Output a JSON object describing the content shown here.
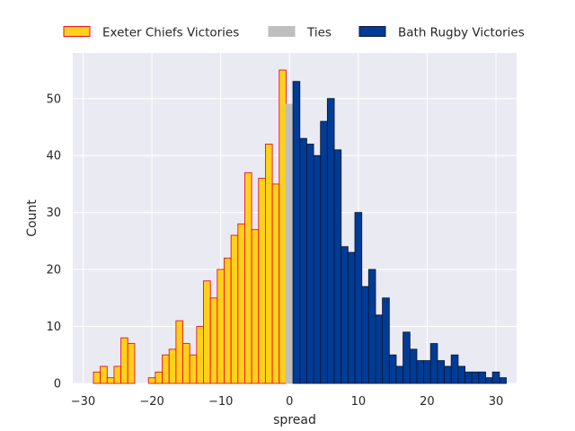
{
  "chart_data": {
    "type": "bar",
    "subtype": "histogram",
    "xlabel": "spread",
    "ylabel": "Count",
    "xlim": [
      -31.5,
      33
    ],
    "ylim": [
      0,
      58
    ],
    "x_ticks": [
      -30,
      -20,
      -10,
      0,
      10,
      20,
      30
    ],
    "x_tick_labels": [
      "−30",
      "−20",
      "−10",
      "0",
      "10",
      "20",
      "30"
    ],
    "y_ticks": [
      0,
      10,
      20,
      30,
      40,
      50
    ],
    "y_tick_labels": [
      "0",
      "10",
      "20",
      "30",
      "40",
      "50"
    ],
    "bin_width": 1,
    "grid": true,
    "legend_placement": "top",
    "series": [
      {
        "name": "Exeter Chiefs Victories",
        "color": "#FFD11A",
        "edge_color": "#E8102A",
        "bins": [
          {
            "x": -28,
            "count": 2
          },
          {
            "x": -27,
            "count": 3
          },
          {
            "x": -26,
            "count": 1
          },
          {
            "x": -25,
            "count": 3
          },
          {
            "x": -24,
            "count": 8
          },
          {
            "x": -23,
            "count": 7
          },
          {
            "x": -20,
            "count": 1
          },
          {
            "x": -19,
            "count": 2
          },
          {
            "x": -18,
            "count": 5
          },
          {
            "x": -17,
            "count": 6
          },
          {
            "x": -16,
            "count": 11
          },
          {
            "x": -15,
            "count": 7
          },
          {
            "x": -14,
            "count": 5
          },
          {
            "x": -13,
            "count": 10
          },
          {
            "x": -12,
            "count": 18
          },
          {
            "x": -11,
            "count": 15
          },
          {
            "x": -10,
            "count": 20
          },
          {
            "x": -9,
            "count": 22
          },
          {
            "x": -8,
            "count": 26
          },
          {
            "x": -7,
            "count": 28
          },
          {
            "x": -6,
            "count": 37
          },
          {
            "x": -5,
            "count": 27
          },
          {
            "x": -4,
            "count": 36
          },
          {
            "x": -3,
            "count": 42
          },
          {
            "x": -2,
            "count": 35
          },
          {
            "x": -1,
            "count": 55
          }
        ]
      },
      {
        "name": "Ties",
        "color": "#BFBFBF",
        "edge_color": "#BFBFBF",
        "bins": [
          {
            "x": 0,
            "count": 49
          }
        ]
      },
      {
        "name": "Bath Rugby Victories",
        "color": "#003B95",
        "edge_color": "#0A1A3A",
        "bins": [
          {
            "x": 1,
            "count": 53
          },
          {
            "x": 2,
            "count": 43
          },
          {
            "x": 3,
            "count": 42
          },
          {
            "x": 4,
            "count": 40
          },
          {
            "x": 5,
            "count": 46
          },
          {
            "x": 6,
            "count": 50
          },
          {
            "x": 7,
            "count": 41
          },
          {
            "x": 8,
            "count": 24
          },
          {
            "x": 9,
            "count": 23
          },
          {
            "x": 10,
            "count": 30
          },
          {
            "x": 11,
            "count": 17
          },
          {
            "x": 12,
            "count": 20
          },
          {
            "x": 13,
            "count": 12
          },
          {
            "x": 14,
            "count": 15
          },
          {
            "x": 15,
            "count": 5
          },
          {
            "x": 16,
            "count": 3
          },
          {
            "x": 17,
            "count": 9
          },
          {
            "x": 18,
            "count": 6
          },
          {
            "x": 19,
            "count": 4
          },
          {
            "x": 20,
            "count": 4
          },
          {
            "x": 21,
            "count": 7
          },
          {
            "x": 22,
            "count": 4
          },
          {
            "x": 23,
            "count": 3
          },
          {
            "x": 24,
            "count": 5
          },
          {
            "x": 25,
            "count": 3
          },
          {
            "x": 26,
            "count": 2
          },
          {
            "x": 27,
            "count": 2
          },
          {
            "x": 28,
            "count": 2
          },
          {
            "x": 29,
            "count": 1
          },
          {
            "x": 30,
            "count": 2
          },
          {
            "x": 31,
            "count": 1
          }
        ]
      }
    ]
  },
  "colors": {
    "plot_background": "#EAEAF2",
    "grid": "#FFFFFF",
    "text": "#262626"
  }
}
